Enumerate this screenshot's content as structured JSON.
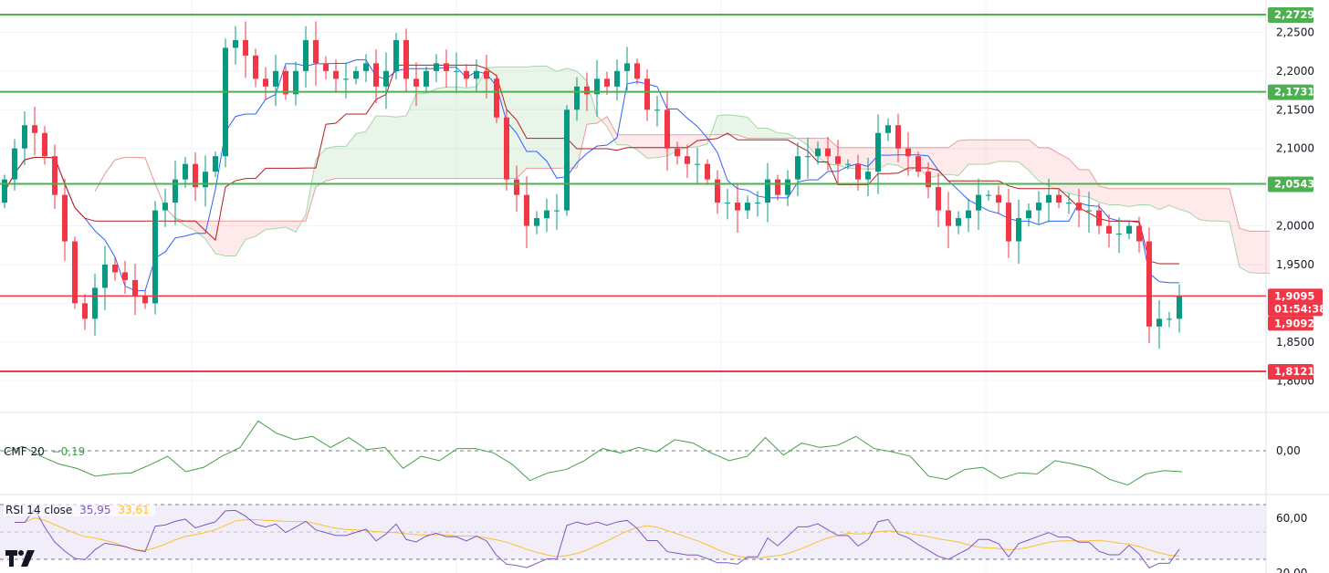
{
  "chart_data": [
    {
      "type": "candlestick",
      "title": "Price with Ichimoku",
      "yrange": [
        1.78,
        2.29
      ],
      "y_ticks": [
        "2,2500",
        "2,2000",
        "2,1500",
        "2,1000",
        "2,0000",
        "1,9500",
        "1,8500",
        "1,8000"
      ],
      "y_tick_values": [
        2.25,
        2.2,
        2.15,
        2.1,
        2.0,
        1.95,
        1.85,
        1.8
      ],
      "closes": [
        2.06,
        2.1,
        2.13,
        2.12,
        2.09,
        2.04,
        1.98,
        1.9,
        1.88,
        1.92,
        1.95,
        1.94,
        1.93,
        1.91,
        1.9,
        2.02,
        2.03,
        2.06,
        2.08,
        2.05,
        2.07,
        2.09,
        2.23,
        2.24,
        2.22,
        2.19,
        2.18,
        2.2,
        2.17,
        2.2,
        2.24,
        2.21,
        2.2,
        2.19,
        2.19,
        2.2,
        2.21,
        2.18,
        2.2,
        2.24,
        2.19,
        2.18,
        2.2,
        2.21,
        2.2,
        2.2,
        2.19,
        2.2,
        2.19,
        2.14,
        2.06,
        2.04,
        2.0,
        2.01,
        2.02,
        2.02,
        2.15,
        2.18,
        2.17,
        2.19,
        2.18,
        2.2,
        2.21,
        2.19,
        2.15,
        2.15,
        2.1,
        2.09,
        2.08,
        2.08,
        2.06,
        2.03,
        2.03,
        2.02,
        2.03,
        2.03,
        2.06,
        2.04,
        2.06,
        2.09,
        2.09,
        2.1,
        2.09,
        2.08,
        2.08,
        2.06,
        2.07,
        2.12,
        2.13,
        2.1,
        2.09,
        2.07,
        2.05,
        2.02,
        2.0,
        2.01,
        2.02,
        2.04,
        2.04,
        2.03,
        1.98,
        2.01,
        2.02,
        2.03,
        2.04,
        2.03,
        2.03,
        2.02,
        2.02,
        2.0,
        1.99,
        1.99,
        2.0,
        1.98,
        1.87,
        1.88,
        1.88,
        1.9095
      ],
      "first_open": 2.03,
      "levels": [
        {
          "value": 2.2729,
          "label": "2,2729",
          "color": "#4caf50"
        },
        {
          "value": 2.1731,
          "label": "2,1731",
          "color": "#4caf50"
        },
        {
          "value": 2.0543,
          "label": "2,0543",
          "color": "#4caf50"
        },
        {
          "value": 1.8121,
          "label": "1,8121",
          "color": "#f23645"
        }
      ],
      "current_price": {
        "value": 1.9095,
        "label": "1,9095",
        "countdown": "01:54:38",
        "prev_label": "1,9092",
        "color": "#f23645"
      },
      "colors": {
        "up": "#089981",
        "down": "#f23645",
        "tenkan": "#2962ff",
        "kijun": "#b71c1c",
        "cloud_up": "#4caf50",
        "cloud_down": "#f23645"
      }
    },
    {
      "type": "line",
      "title": "CMF 20",
      "legend_name": "CMF 20",
      "legend_value": "−0,19",
      "y_ticks": [
        "0,00"
      ],
      "values": [
        -0.02,
        0.04,
        -0.05,
        -0.12,
        -0.16,
        -0.23,
        -0.21,
        -0.2,
        -0.13,
        -0.05,
        -0.19,
        -0.15,
        -0.05,
        0.03,
        0.27,
        0.16,
        0.1,
        0.13,
        0.03,
        0.12,
        0.01,
        0.03,
        -0.16,
        -0.05,
        -0.09,
        0.02,
        0.02,
        -0.02,
        -0.12,
        -0.27,
        -0.2,
        -0.17,
        -0.09,
        0.02,
        -0.02,
        0.03,
        -0.01,
        0.1,
        0.07,
        -0.02,
        -0.09,
        -0.05,
        0.12,
        -0.04,
        0.07,
        0.03,
        0.05,
        0.13,
        0.02,
        -0.01,
        -0.05,
        -0.23,
        -0.26,
        -0.17,
        -0.15,
        -0.25,
        -0.2,
        -0.21,
        -0.09,
        -0.12,
        -0.16,
        -0.26,
        -0.31,
        -0.21,
        -0.18,
        -0.19
      ],
      "color": "#43a047"
    },
    {
      "type": "line",
      "title": "RSI 14 close",
      "legend_name": "RSI 14 close",
      "legend_value": "35,95",
      "legend_ma_value": "33,61",
      "y_ticks": [
        "60,00",
        "20,00"
      ],
      "bands": [
        70,
        50,
        30
      ],
      "colors": {
        "rsi": "#7e57c2",
        "ma": "#fbc02d",
        "band_fill": "#ede7f6"
      }
    }
  ]
}
